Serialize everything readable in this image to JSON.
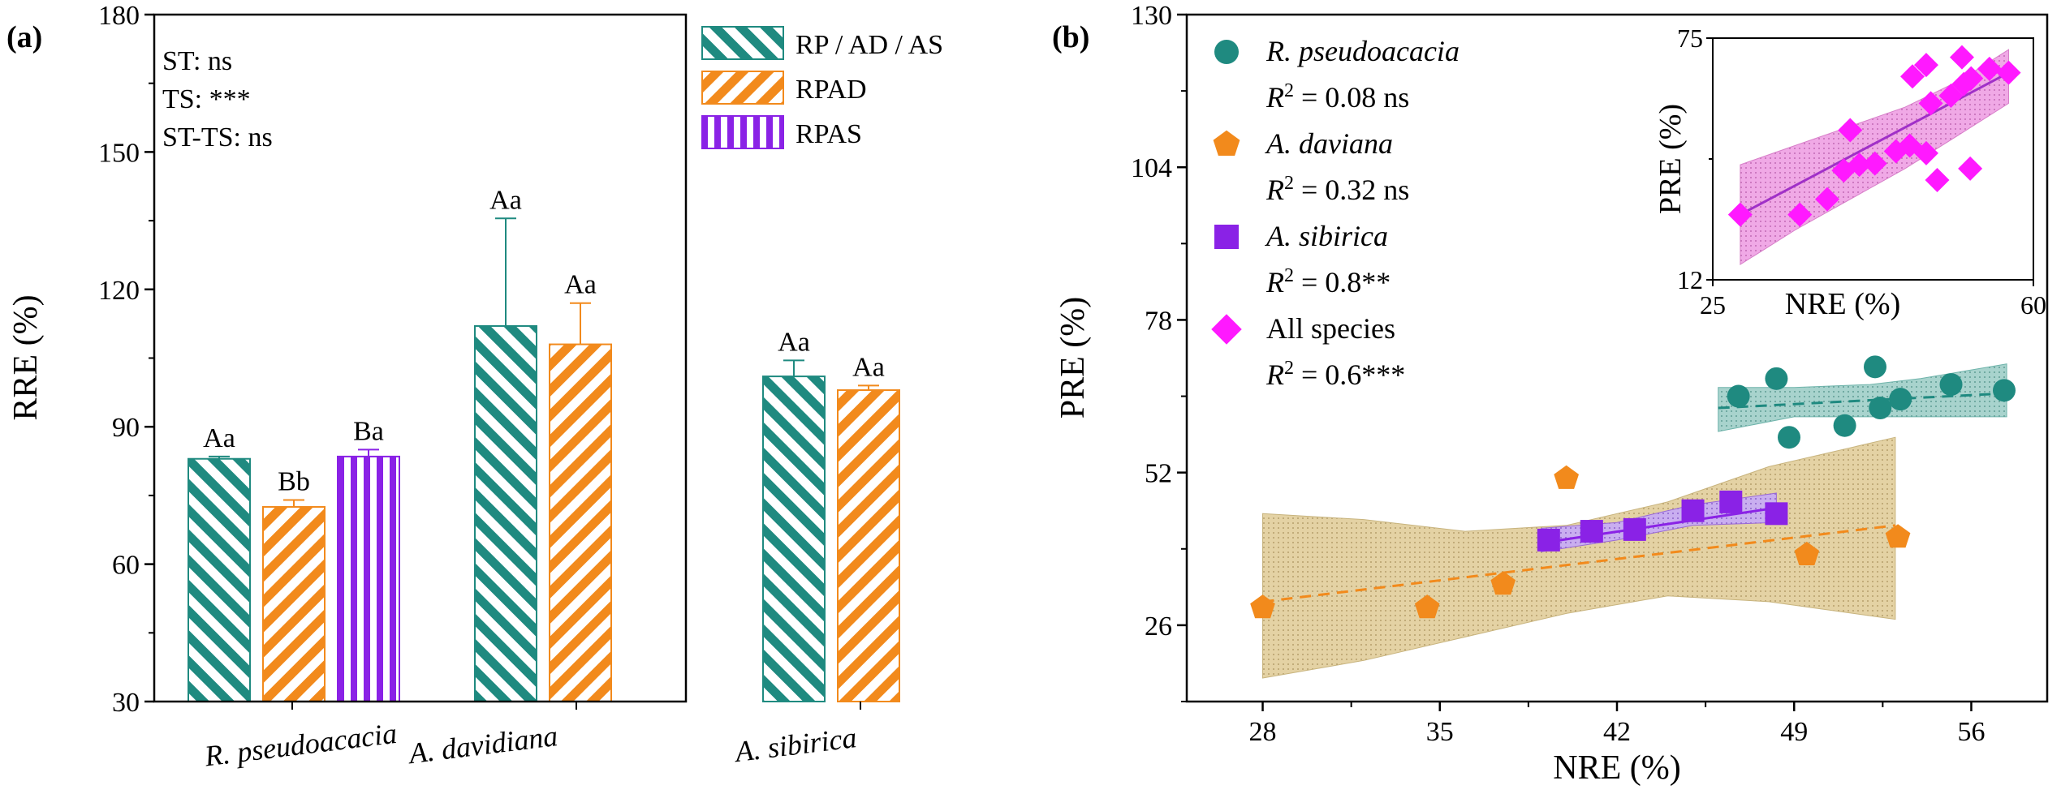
{
  "panel_a": {
    "label": "(a)",
    "stats": [
      "ST: ns",
      "TS: ***",
      "ST-TS: ns"
    ],
    "colors": {
      "RP / AD / AS": "#1f8a80",
      "RPAD": "#f28a1c",
      "RPAS": "#8a22e6"
    }
  },
  "panel_b": {
    "label": "(b)",
    "legend": [
      {
        "name": "R. pseudoacacia",
        "italic": true,
        "r2_value": "0.08",
        "r2_sig": " ns",
        "color": "#1f8a80",
        "marker": "circle"
      },
      {
        "name": "A. daviana",
        "italic": true,
        "r2_value": "0.32",
        "r2_sig": " ns",
        "color": "#f28a1c",
        "marker": "pentagon"
      },
      {
        "name": "A. sibirica",
        "italic": true,
        "r2_value": "0.8",
        "r2_sig": "**",
        "color": "#8a22e6",
        "marker": "square"
      },
      {
        "name": "All species",
        "italic": false,
        "r2_value": "0.6",
        "r2_sig": "***",
        "color": "#ff19ff",
        "marker": "diamond"
      }
    ],
    "r2_prefix": "R",
    "r2_sup": "2",
    "r2_eq": " = "
  },
  "chart_data": [
    {
      "type": "bar",
      "title": "(a)",
      "xlabel": "",
      "ylabel": "RRE (%)",
      "ylim": [
        30,
        180
      ],
      "yticks": [
        30,
        60,
        90,
        120,
        150,
        180
      ],
      "categories": [
        "R. pseudoacacia",
        "A. davidiana",
        "A. sibirica"
      ],
      "series": [
        {
          "name": "RP / AD / AS",
          "values": [
            83,
            112,
            101
          ],
          "errors": [
            0.5,
            23.5,
            3.5
          ],
          "labels": [
            "Aa",
            "Aa",
            "Aa"
          ]
        },
        {
          "name": "RPAD",
          "values": [
            72.5,
            108,
            98
          ],
          "errors": [
            1.5,
            9,
            1
          ],
          "labels": [
            "Bb",
            "Aa",
            "Aa"
          ]
        },
        {
          "name": "RPAS",
          "values": [
            83.5,
            null,
            null
          ],
          "errors": [
            1.5,
            null,
            null
          ],
          "labels": [
            "Ba",
            null,
            null
          ]
        }
      ]
    },
    {
      "type": "scatter",
      "title": "(b)",
      "xlabel": "NRE (%)",
      "ylabel": "PRE (%)",
      "xlim": [
        25,
        59
      ],
      "ylim": [
        13,
        130
      ],
      "xticks": [
        28,
        35,
        42,
        49,
        56
      ],
      "yticks": [
        26,
        52,
        78,
        104,
        130
      ],
      "series": [
        {
          "name": "R. pseudoacacia",
          "x": [
            46.8,
            48.3,
            48.8,
            51,
            52.2,
            52.4,
            53.2,
            55.2,
            57.3
          ],
          "y": [
            65,
            68,
            58,
            60,
            70,
            63,
            64.5,
            67,
            66
          ],
          "fit": {
            "x": [
              46,
              57.4
            ],
            "y": [
              63,
              65.5
            ],
            "style": "dashed"
          }
        },
        {
          "name": "A. daviana",
          "x": [
            28,
            34.5,
            37.5,
            40,
            49.5,
            53.1
          ],
          "y": [
            29,
            29,
            33,
            51,
            38,
            41
          ],
          "fit": {
            "x": [
              28,
              53
            ],
            "y": [
              30,
              43
            ],
            "style": "dashed"
          }
        },
        {
          "name": "A. sibirica",
          "x": [
            39.3,
            41,
            42.7,
            45,
            46.5,
            48.3
          ],
          "y": [
            40.5,
            42,
            42.3,
            45.5,
            47,
            45
          ],
          "fit": {
            "x": [
              39,
              48.3
            ],
            "y": [
              40,
              46
            ],
            "style": "solid"
          }
        },
        {
          "name": "All species",
          "x": [],
          "y": []
        }
      ]
    },
    {
      "type": "scatter",
      "title": "inset",
      "xlabel": "NRE (%)",
      "ylabel": "PRE (%)",
      "xlim": [
        25,
        60
      ],
      "ylim": [
        12,
        75
      ],
      "xticks": [
        25,
        60
      ],
      "yticks": [
        12,
        75
      ],
      "series": [
        {
          "name": "All species",
          "x": [
            28,
            34.5,
            37.5,
            40,
            39.3,
            41,
            42.7,
            45,
            46.5,
            48.3,
            49.5,
            48.8,
            46.8,
            48.3,
            51,
            52.2,
            53.2,
            55.2,
            57.3,
            53.1,
            52.4
          ],
          "y": [
            29,
            29,
            33,
            51,
            40.5,
            42,
            42.3,
            45.5,
            47,
            45,
            38,
            58,
            65,
            68,
            60,
            70,
            64.5,
            67,
            66,
            41,
            63
          ],
          "fit": {
            "x": [
              28,
              57.3
            ],
            "y": [
              29,
              66
            ],
            "style": "solid"
          }
        }
      ]
    }
  ]
}
